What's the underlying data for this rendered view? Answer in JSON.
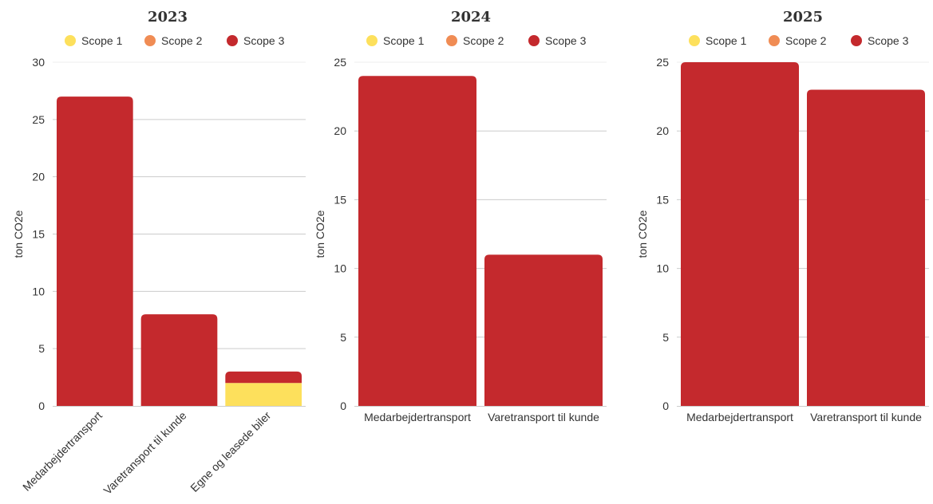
{
  "colors": {
    "Scope 1": "#FDE05C",
    "Scope 2": "#F08C54",
    "Scope 3": "#C4292D"
  },
  "chart_data": [
    {
      "type": "bar",
      "stacked": true,
      "title": "2023",
      "ylabel": "ton CO2e",
      "ylim": [
        0,
        30
      ],
      "yticks": [
        0,
        5,
        10,
        15,
        20,
        25,
        30
      ],
      "legend": [
        "Scope 1",
        "Scope 2",
        "Scope 3"
      ],
      "legend_position": "top",
      "categories": [
        "Medarbejdertransport",
        "Varetransport til kunde",
        "Egne og leasede biler"
      ],
      "category_label_rotation": "rotated",
      "series": [
        {
          "name": "Scope 1",
          "values": [
            0,
            0,
            2
          ]
        },
        {
          "name": "Scope 2",
          "values": [
            0,
            0,
            0
          ]
        },
        {
          "name": "Scope 3",
          "values": [
            27,
            8,
            1
          ]
        }
      ]
    },
    {
      "type": "bar",
      "stacked": true,
      "title": "2024",
      "ylabel": "ton CO2e",
      "ylim": [
        0,
        25
      ],
      "yticks": [
        0,
        5,
        10,
        15,
        20,
        25
      ],
      "legend": [
        "Scope 1",
        "Scope 2",
        "Scope 3"
      ],
      "legend_position": "top",
      "categories": [
        "Medarbejdertransport",
        "Varetransport til kunde"
      ],
      "category_label_rotation": "horizontal",
      "series": [
        {
          "name": "Scope 1",
          "values": [
            0,
            0
          ]
        },
        {
          "name": "Scope 2",
          "values": [
            0,
            0
          ]
        },
        {
          "name": "Scope 3",
          "values": [
            24,
            11
          ]
        }
      ]
    },
    {
      "type": "bar",
      "stacked": true,
      "title": "2025",
      "ylabel": "ton CO2e",
      "ylim": [
        0,
        25
      ],
      "yticks": [
        0,
        5,
        10,
        15,
        20,
        25
      ],
      "legend": [
        "Scope 1",
        "Scope 2",
        "Scope 3"
      ],
      "legend_position": "top",
      "categories": [
        "Medarbejdertransport",
        "Varetransport til kunde"
      ],
      "category_label_rotation": "horizontal",
      "series": [
        {
          "name": "Scope 1",
          "values": [
            0,
            0
          ]
        },
        {
          "name": "Scope 2",
          "values": [
            0,
            0
          ]
        },
        {
          "name": "Scope 3",
          "values": [
            25,
            23
          ]
        }
      ]
    }
  ]
}
